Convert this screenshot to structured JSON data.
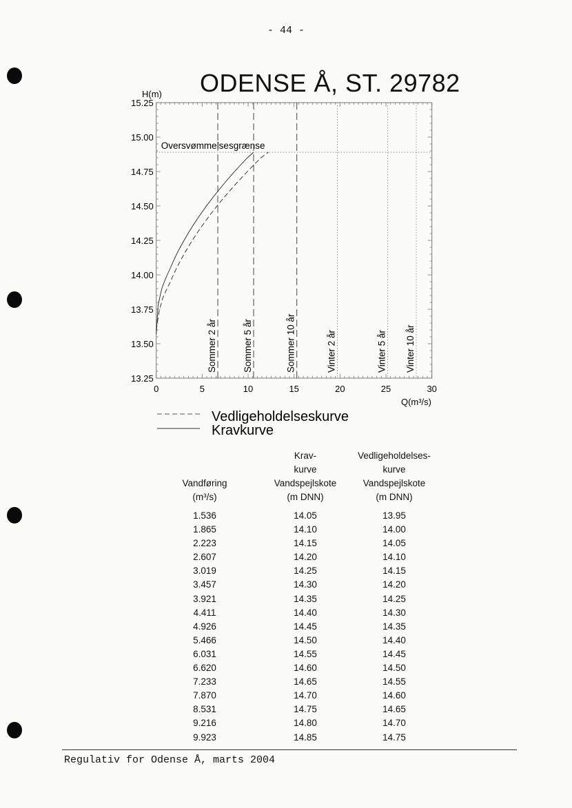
{
  "header": {
    "page_number": "- 44 -"
  },
  "footer": {
    "text": "Regulativ for Odense Å, marts 2004"
  },
  "chart_data": {
    "type": "line",
    "title": "ODENSE Å, ST. 29782",
    "ylabel": "H(m)",
    "xlabel": "Q(m³/s)",
    "xlim": [
      0,
      30
    ],
    "ylim": [
      13.25,
      15.25
    ],
    "xticks": [
      "0",
      "5",
      "10",
      "15",
      "20",
      "25",
      "30"
    ],
    "yticks": [
      "13.25",
      "13.50",
      "13.75",
      "14.00",
      "14.25",
      "14.50",
      "14.75",
      "15.00",
      "15.25"
    ],
    "grid": false,
    "legend_placement": "bottom",
    "series": [
      {
        "name": "Kravkurve",
        "style": "solid",
        "x": [
          0,
          0.2,
          0.6,
          1.0,
          1.536,
          1.865,
          2.223,
          2.607,
          3.019,
          3.457,
          3.921,
          4.411,
          4.926,
          5.466,
          6.031,
          6.62,
          7.233,
          7.87,
          8.531,
          9.216,
          9.923,
          10.6
        ],
        "y": [
          13.57,
          13.78,
          13.9,
          13.97,
          14.05,
          14.1,
          14.15,
          14.2,
          14.25,
          14.3,
          14.35,
          14.4,
          14.45,
          14.5,
          14.55,
          14.6,
          14.65,
          14.7,
          14.75,
          14.8,
          14.85,
          14.89
        ]
      },
      {
        "name": "Vedligeholdelseskurve",
        "style": "dashed",
        "x": [
          0,
          0.3,
          0.7,
          1.1,
          1.536,
          1.865,
          2.223,
          2.607,
          3.019,
          3.457,
          3.921,
          4.411,
          4.926,
          5.466,
          6.031,
          6.62,
          7.233,
          7.87,
          8.531,
          9.216,
          9.923,
          10.65,
          11.4,
          12.2
        ],
        "y": [
          13.6,
          13.73,
          13.83,
          13.89,
          13.95,
          14.0,
          14.05,
          14.1,
          14.15,
          14.2,
          14.25,
          14.3,
          14.35,
          14.4,
          14.45,
          14.5,
          14.55,
          14.6,
          14.65,
          14.7,
          14.75,
          14.8,
          14.85,
          14.89
        ]
      }
    ],
    "reference_lines": {
      "horizontal": [
        {
          "label": "Oversvømmelsesgrænse",
          "y": 14.89,
          "style": "dotted"
        }
      ],
      "vertical": [
        {
          "label": "Sommer 2 år",
          "x": 6.7,
          "style": "dashed"
        },
        {
          "label": "Sommer 5 år",
          "x": 10.6,
          "style": "dashed"
        },
        {
          "label": "Sommer 10 år",
          "x": 15.3,
          "style": "dashed"
        },
        {
          "label": "Vinter 2 år",
          "x": 19.7,
          "style": "dotted"
        },
        {
          "label": "Vinter 5 år",
          "x": 25.2,
          "style": "dotted"
        },
        {
          "label": "Vinter 10 år",
          "x": 28.3,
          "style": "dotted"
        }
      ]
    },
    "colors": {
      "line": "#222222",
      "axis": "#777777"
    }
  },
  "table": {
    "header": {
      "col1": [
        "",
        "",
        "Vandføring",
        "(m³/s)"
      ],
      "col2": [
        "Krav-",
        "kurve",
        "Vandspejlskote",
        "(m DNN)"
      ],
      "col3": [
        "Vedligeholdelses-",
        "kurve",
        "Vandspejlskote",
        "(m DNN)"
      ]
    },
    "col1": [
      "1.536",
      "1.865",
      "2.223",
      "2.607",
      "3.019",
      "3.457",
      "3.921",
      "4.411",
      "4.926",
      "5.466",
      "6.031",
      "6.620",
      "7.233",
      "7.870",
      "8.531",
      "9.216",
      "9.923"
    ],
    "col2": [
      "14.05",
      "14.10",
      "14.15",
      "14.20",
      "14.25",
      "14.30",
      "14.35",
      "14.40",
      "14.45",
      "14.50",
      "14.55",
      "14.60",
      "14.65",
      "14.70",
      "14.75",
      "14.80",
      "14.85"
    ],
    "col3": [
      "13.95",
      "14.00",
      "14.05",
      "14.10",
      "14.15",
      "14.20",
      "14.25",
      "14.30",
      "14.35",
      "14.40",
      "14.45",
      "14.50",
      "14.55",
      "14.60",
      "14.65",
      "14.70",
      "14.75"
    ]
  }
}
